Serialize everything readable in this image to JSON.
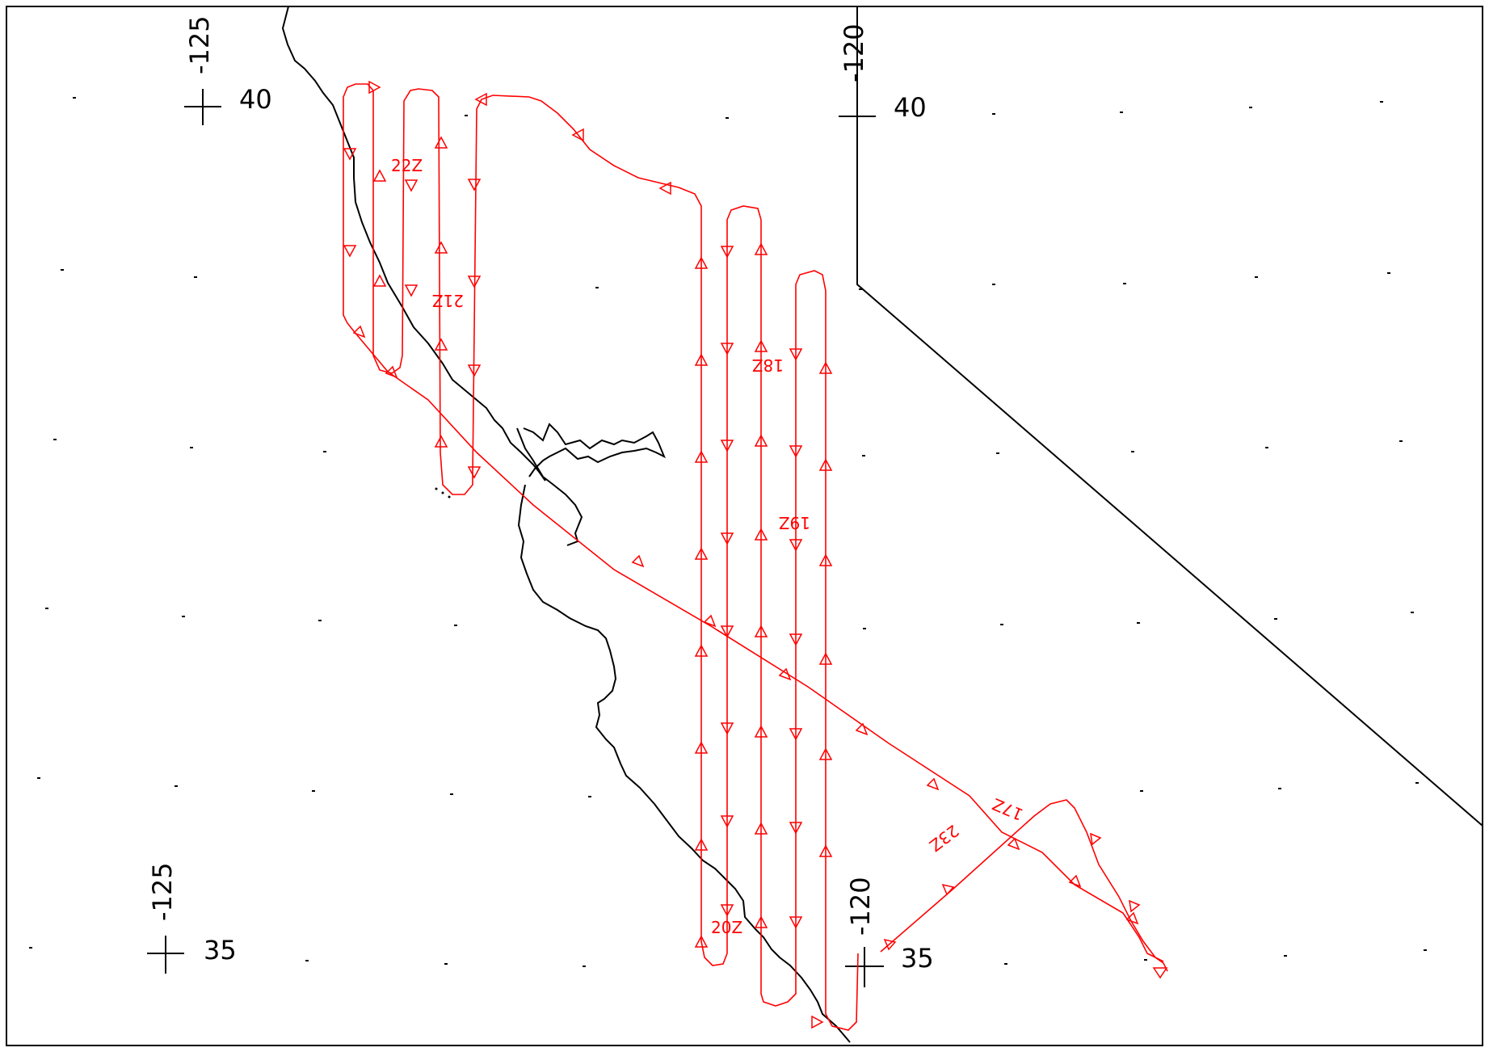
{
  "map": {
    "longitude_labels": [
      "-125",
      "-120",
      "-125",
      "-120"
    ],
    "latitude_labels": [
      "40",
      "40",
      "35",
      "35"
    ],
    "time_labels": [
      "22Z",
      "21Z",
      "18Z",
      "19Z",
      "20Z",
      "17Z",
      "23Z"
    ],
    "colors": {
      "track": "#ff0000",
      "coastline": "#000000",
      "frame": "#000000",
      "background": "#ffffff"
    },
    "icons": [
      "track-direction-arrow-icon",
      "grid-cross-marker-icon"
    ]
  }
}
